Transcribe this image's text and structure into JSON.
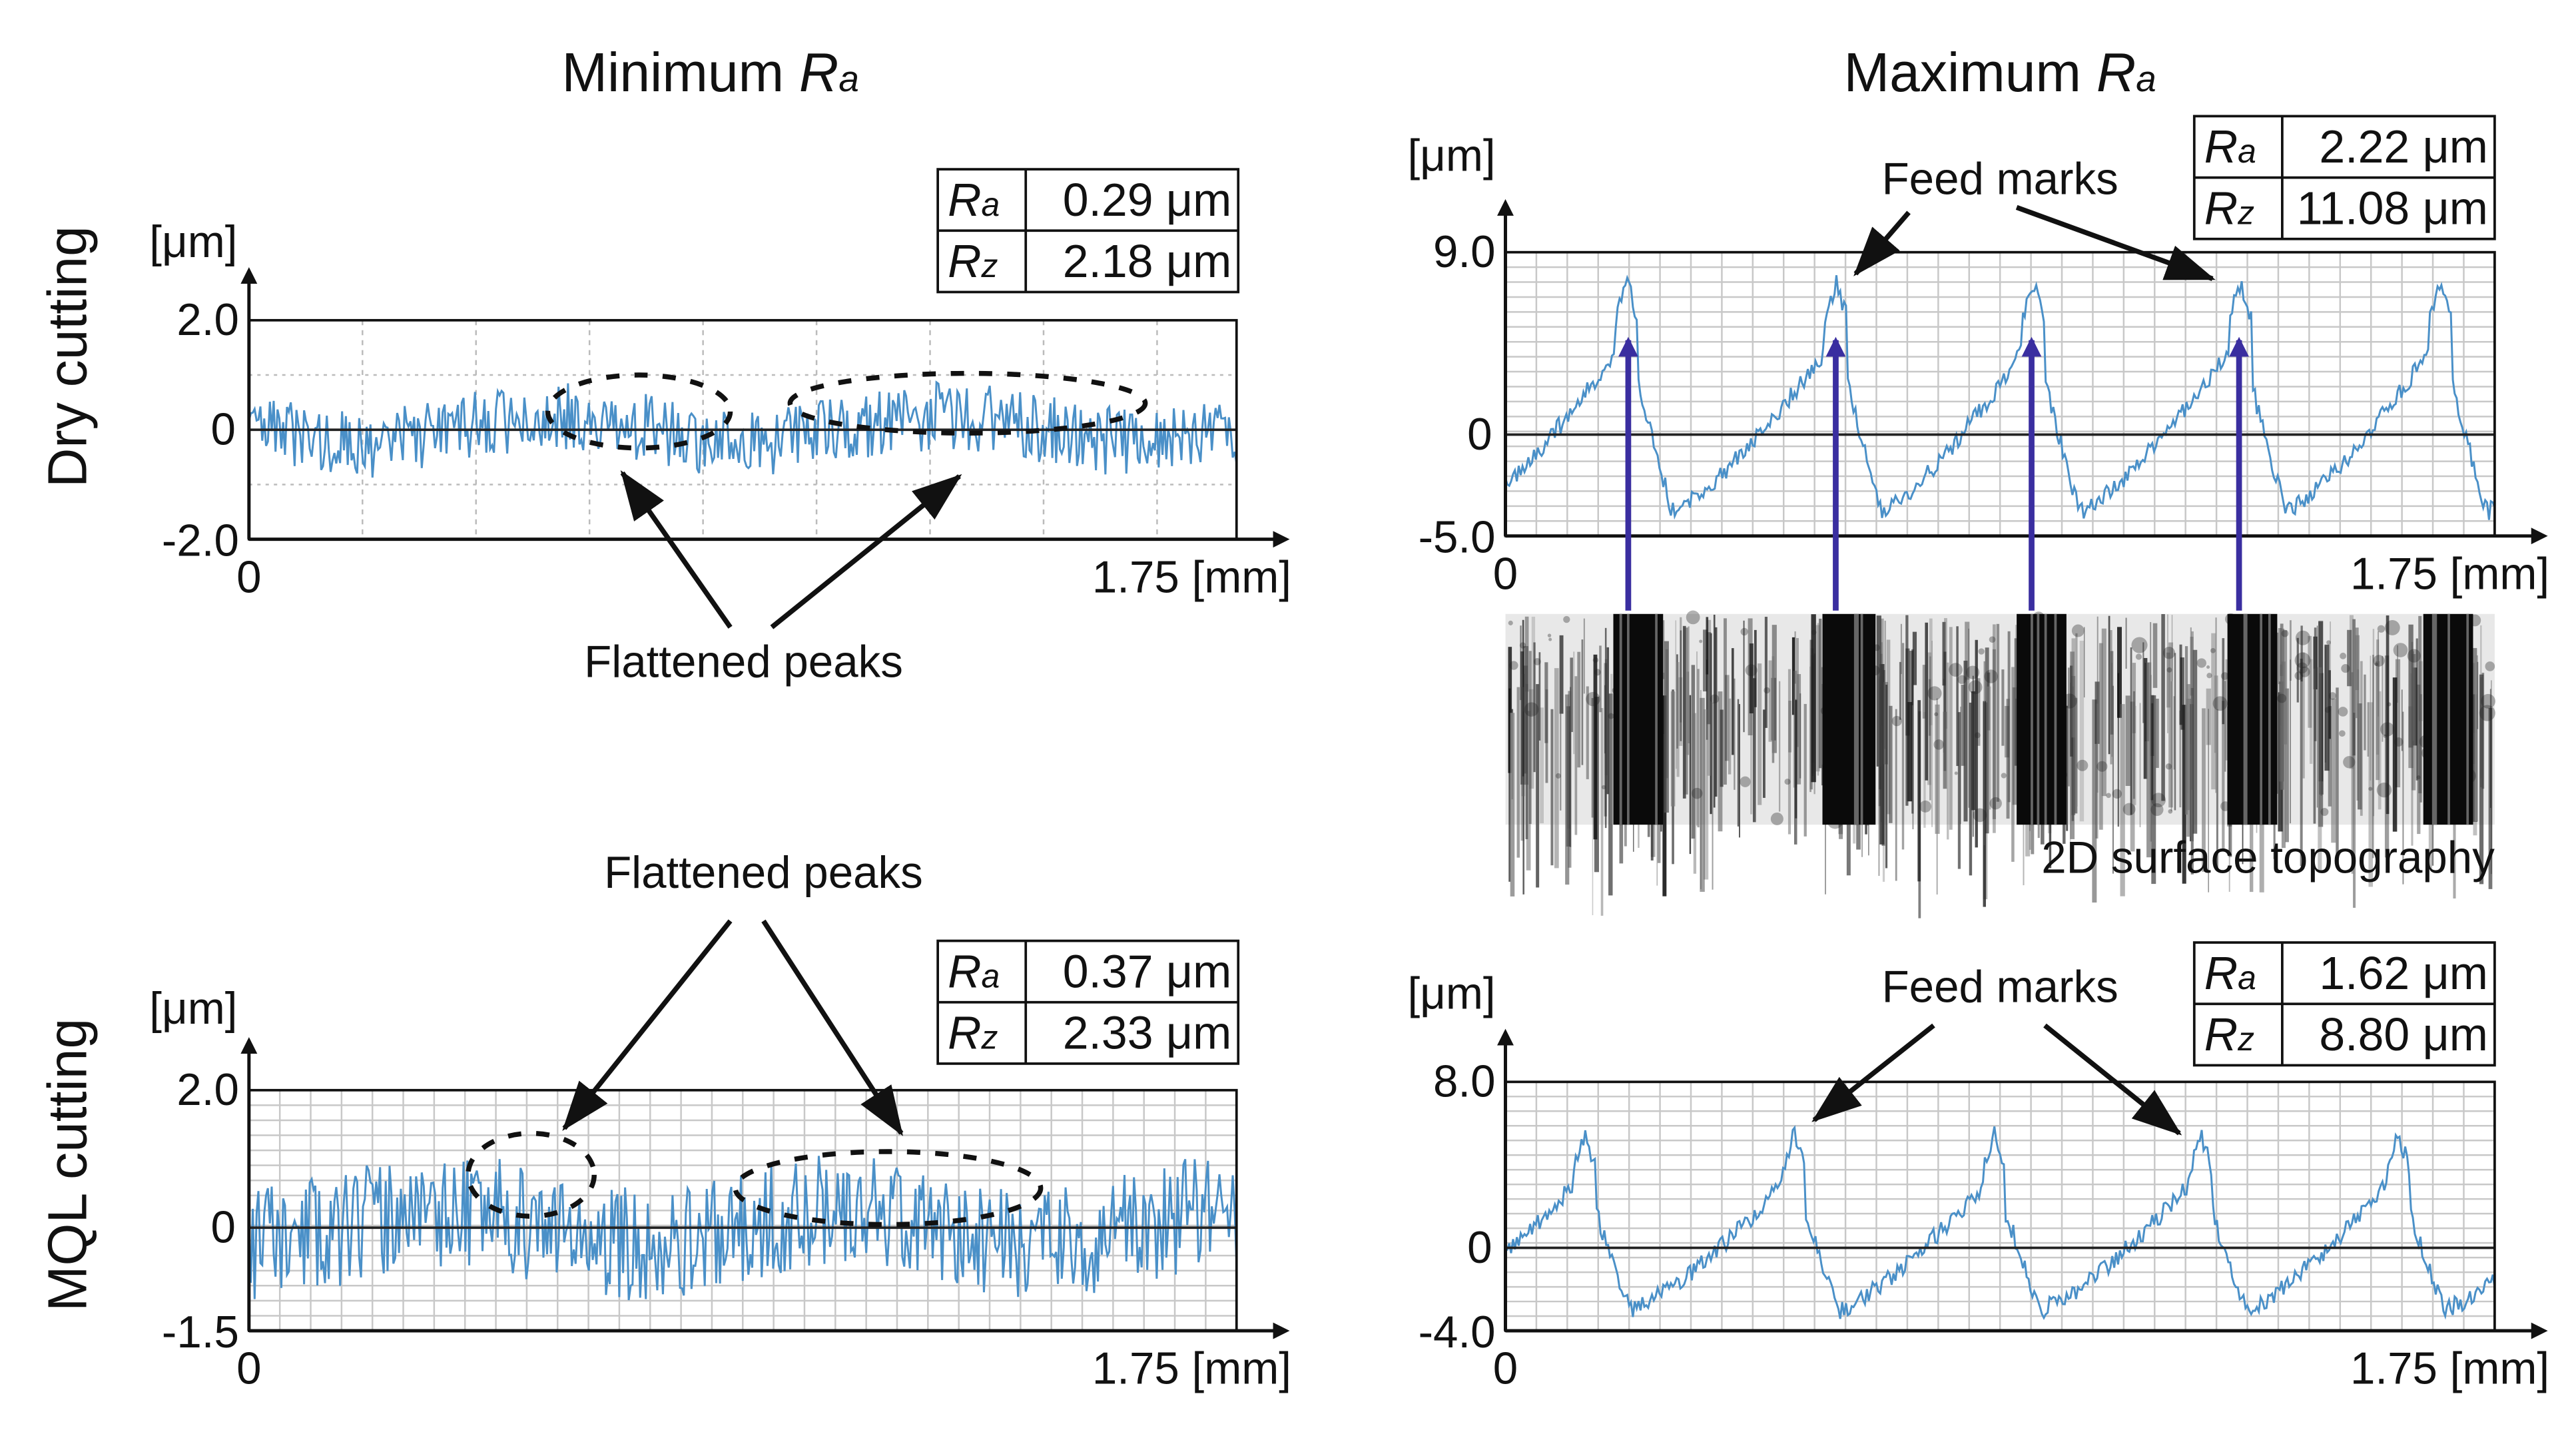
{
  "titles": {
    "min": "Minimum ",
    "max": "Maximum ",
    "ra_symbol": "R",
    "ra_sub": "a"
  },
  "rows": {
    "dry": "Dry cutting",
    "mql": "MQL cutting"
  },
  "annotations": {
    "flattened": "Flattened peaks",
    "feed": "Feed marks",
    "topography": "2D surface topography"
  },
  "colors": {
    "profile": "#4a90c8",
    "arrow_blue": "#3a2ea0",
    "grid": "#c8c8c8"
  },
  "chart_data": [
    {
      "id": "dry_min",
      "type": "line",
      "title": "Minimum Ra – Dry cutting",
      "ylabel": "[μm]",
      "xlabel": "[mm]",
      "xlim": [
        0,
        1.75
      ],
      "ylim": [
        -2.0,
        2.0
      ],
      "yticks": [
        "2.0",
        "0",
        "-2.0"
      ],
      "xticks": [
        "0",
        "1.75 [mm]"
      ],
      "grid": "dotted",
      "Ra": "0.29 μm",
      "Rz": "2.18 μm",
      "profile": {
        "kind": "noise",
        "amplitude": 0.45,
        "seed": 3
      }
    },
    {
      "id": "dry_max",
      "type": "line",
      "title": "Maximum Ra – Dry cutting",
      "ylabel": "[μm]",
      "xlabel": "[mm]",
      "xlim": [
        0,
        1.75
      ],
      "ylim": [
        -5.0,
        9.0
      ],
      "yticks": [
        "9.0",
        "0",
        "-5.0"
      ],
      "xticks": [
        "0",
        "1.75 [mm]"
      ],
      "grid": "fine",
      "Ra": "2.22 μm",
      "Rz": "11.08 μm",
      "profile": {
        "kind": "feed",
        "peaks_mm": [
          0.215,
          0.585,
          0.935,
          1.3,
          1.655
        ],
        "peak": 7.5,
        "trough": -3.8,
        "seed": 7
      }
    },
    {
      "id": "mql_min",
      "type": "line",
      "title": "Minimum Ra – MQL cutting",
      "ylabel": "[μm]",
      "xlabel": "[mm]",
      "xlim": [
        0,
        1.75
      ],
      "ylim": [
        -1.5,
        2.0
      ],
      "yticks": [
        "2.0",
        "0",
        "-1.5"
      ],
      "xticks": [
        "0",
        "1.75 [mm]"
      ],
      "grid": "fine",
      "Ra": "0.37 μm",
      "Rz": "2.33 μm",
      "profile": {
        "kind": "noise",
        "amplitude": 0.6,
        "seed": 11
      }
    },
    {
      "id": "mql_max",
      "type": "line",
      "title": "Maximum Ra – MQL cutting",
      "ylabel": "[μm]",
      "xlabel": "[mm]",
      "xlim": [
        0,
        1.75
      ],
      "ylim": [
        -4.0,
        8.0
      ],
      "yticks": [
        "8.0",
        "0",
        "-4.0"
      ],
      "xticks": [
        "0",
        "1.75 [mm]"
      ],
      "grid": "fine",
      "Ra": "1.62 μm",
      "Rz": "8.80 μm",
      "profile": {
        "kind": "feed",
        "peaks_mm": [
          0.14,
          0.51,
          0.865,
          1.23,
          1.58
        ],
        "peak": 5.5,
        "trough": -3.0,
        "seed": 19
      }
    }
  ],
  "table_labels": {
    "ra": "R",
    "ra_sub": "a",
    "rz": "R",
    "rz_sub": "z"
  },
  "ylabel": "[μm]"
}
